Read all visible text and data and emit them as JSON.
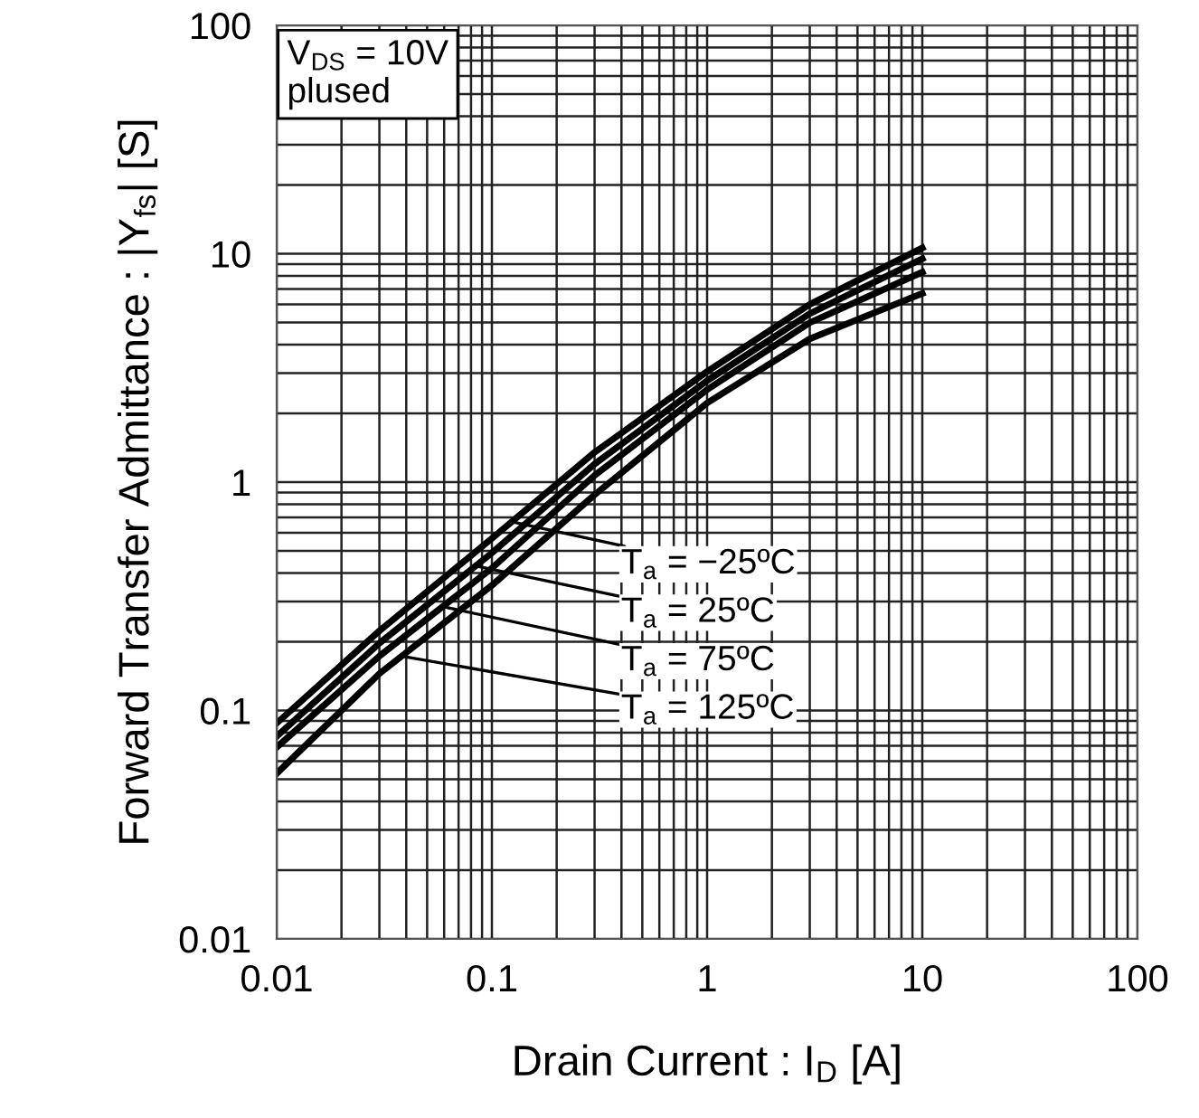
{
  "chart_data": {
    "type": "line",
    "xlabel": "Drain Current : I$_{D}$ [A]",
    "ylabel": "Forward Transfer Admittance : |Y$_{fs}$| [S]",
    "log": "xy",
    "xlim": [
      0.01,
      100
    ],
    "ylim": [
      0.01,
      100
    ],
    "xticks": [
      0.01,
      0.1,
      1,
      10,
      100
    ],
    "yticks": [
      0.01,
      0.1,
      1,
      10,
      100
    ],
    "grid": true,
    "marker": "none",
    "line_style": "solid",
    "x": [
      0.01,
      0.03,
      0.1,
      0.3,
      1,
      3,
      10
    ],
    "series": [
      {
        "color": "#000000",
        "values": [
          0.088,
          0.223,
          0.567,
          1.35,
          3.05,
          6.0,
          10.6
        ]
      },
      {
        "color": "#000000",
        "values": [
          0.077,
          0.197,
          0.49,
          1.2,
          2.78,
          5.47,
          9.5
        ]
      },
      {
        "color": "#000000",
        "values": [
          0.069,
          0.173,
          0.42,
          1.07,
          2.54,
          4.99,
          8.3
        ]
      },
      {
        "color": "#000000",
        "values": [
          0.053,
          0.145,
          0.353,
          0.88,
          2.22,
          4.24,
          6.7
        ]
      }
    ],
    "annotations": [
      "V$_{DS}$ = 10V\nplused",
      {
        "text": "T$_{a}$ = −25ºC",
        "x": 0.124,
        "y": 0.67
      },
      {
        "text": "T$_{a}$ = 25ºC",
        "x": 0.084,
        "y": 0.43
      },
      {
        "text": "T$_{a}$ = 75ºC",
        "x": 0.059,
        "y": 0.285
      },
      {
        "text": "T$_{a}$ = 125ºC",
        "x": 0.038,
        "y": 0.173
      }
    ]
  }
}
